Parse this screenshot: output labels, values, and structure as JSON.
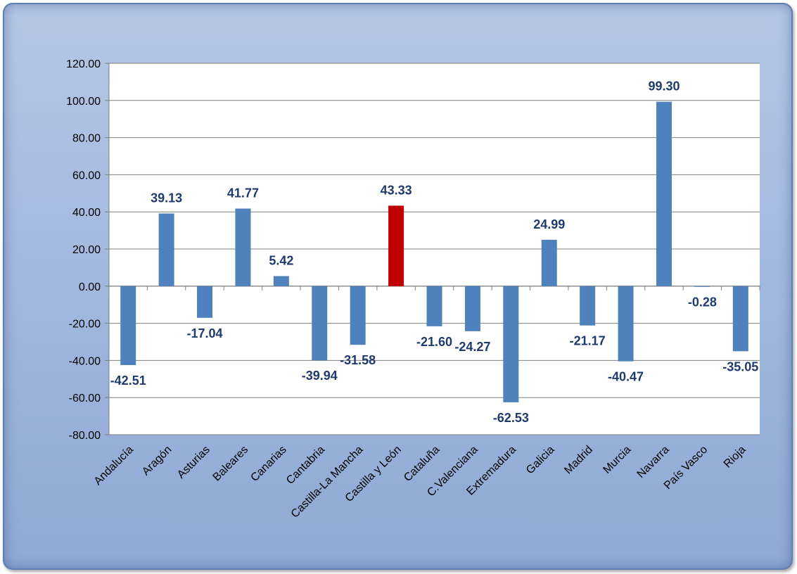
{
  "chart_data": {
    "type": "bar",
    "categories": [
      "Andalucía",
      "Aragón",
      "Asturias",
      "Baleares",
      "Canarias",
      "Cantabria",
      "Castilla-La Mancha",
      "Castilla y León",
      "Cataluña",
      "C.Valenciana",
      "Extremadura",
      "Galicia",
      "Madrid",
      "Murcia",
      "Navarra",
      "País Vasco",
      "Rioja"
    ],
    "values": [
      -42.51,
      39.13,
      -17.04,
      41.77,
      5.42,
      -39.94,
      -31.58,
      43.33,
      -21.6,
      -24.27,
      -62.53,
      24.99,
      -21.17,
      -40.47,
      99.3,
      -0.28,
      -35.05
    ],
    "value_labels": [
      "-42.51",
      "39.13",
      "-17.04",
      "41.77",
      "5.42",
      "-39.94",
      "-31.58",
      "43.33",
      "-21.60",
      "-24.27",
      "-62.53",
      "24.99",
      "-21.17",
      "-40.47",
      "99.30",
      "-0.28",
      "-35.05"
    ],
    "ylim": [
      -80,
      120
    ],
    "ytick_labels": [
      "120.00",
      "100.00",
      "80.00",
      "60.00",
      "40.00",
      "20.00",
      "0.00",
      "-20.00",
      "-40.00",
      "-60.00",
      "-80.00"
    ],
    "yticks": [
      120,
      100,
      80,
      60,
      40,
      20,
      0,
      -20,
      -40,
      -60,
      -80
    ],
    "grid": true,
    "title": "",
    "xlabel": "",
    "ylabel": "",
    "highlight_index": 7,
    "colors": {
      "bar": "#4f81bd",
      "highlight": "#c00000",
      "grid": "#7f7f7f",
      "label": "#1f3b6e"
    }
  }
}
